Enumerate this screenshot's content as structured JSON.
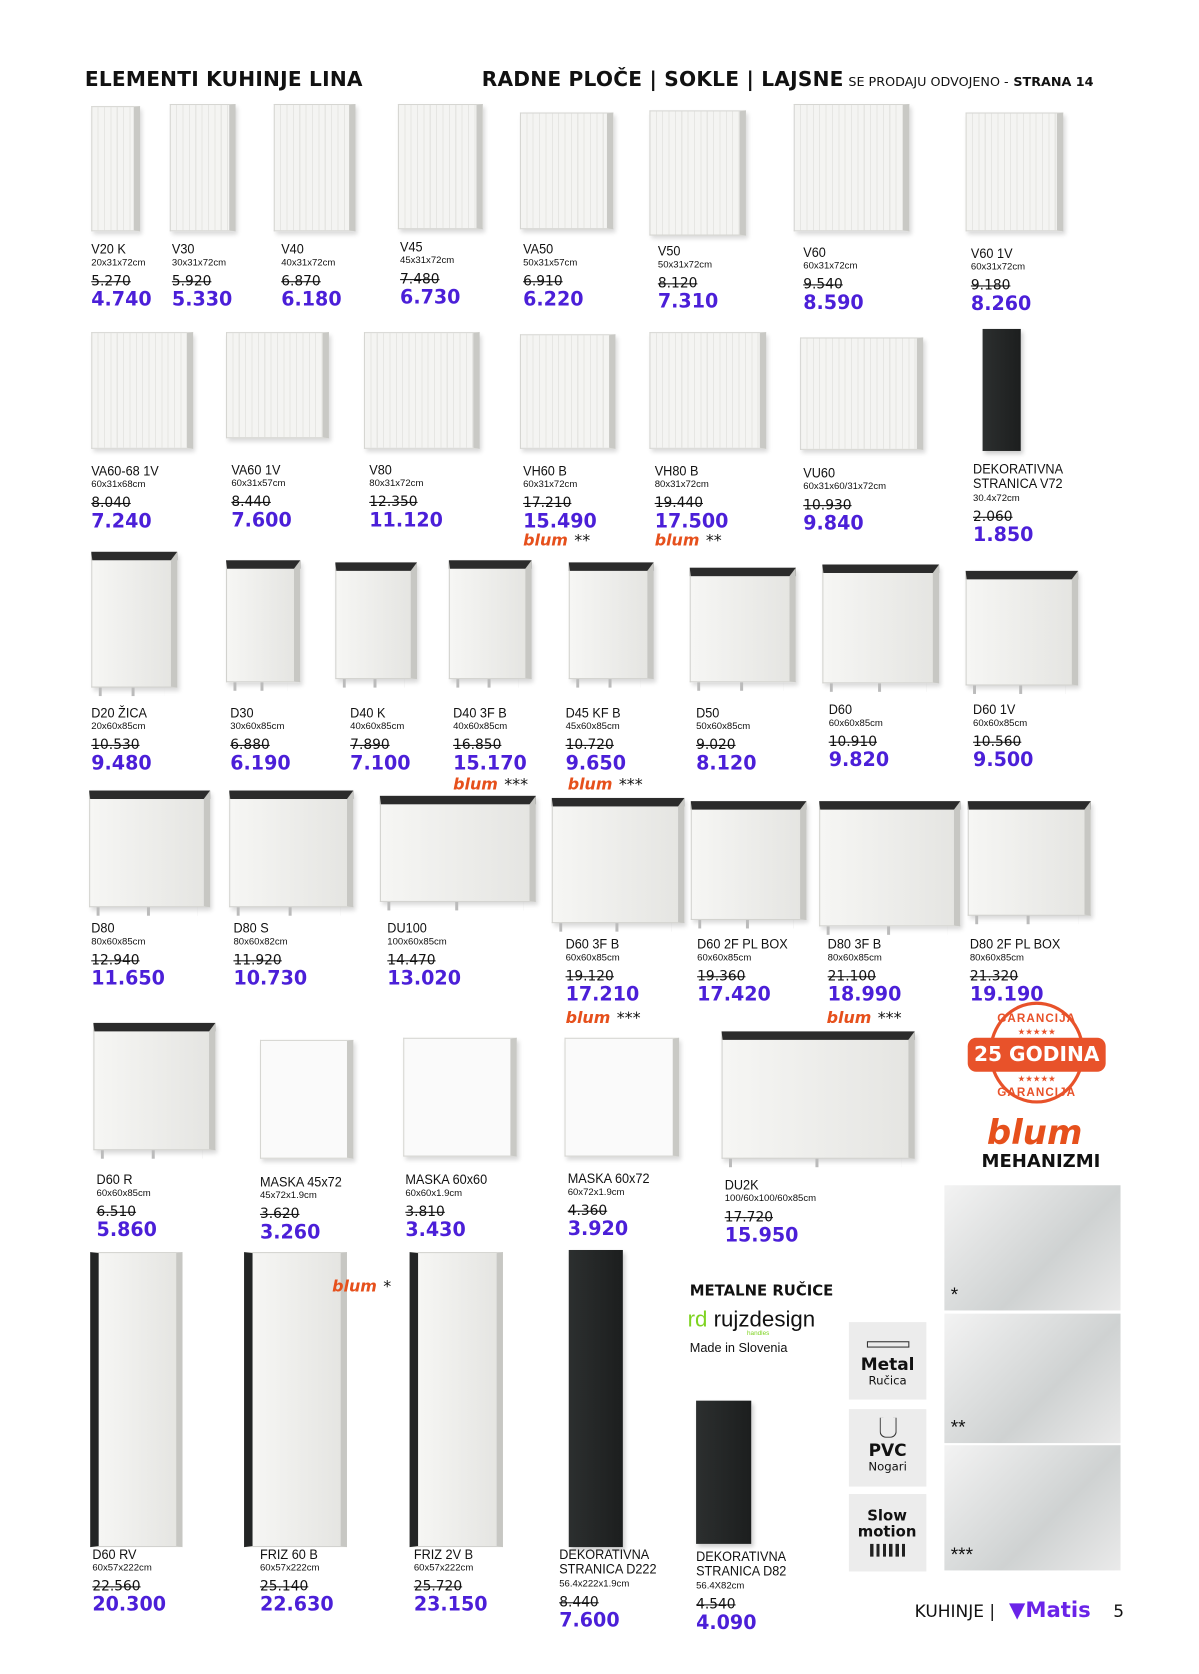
{
  "header": {
    "left_title": "ELEMENTI KUHINJE LINA",
    "right_title": "RADNE PLOČE | SOKLE | LAJSNE",
    "right_note": "SE PRODAJU ODVOJENO -",
    "page_ref": "STRANA 14"
  },
  "products": [
    {
      "name": "V20 K",
      "dims": "20x31x72cm",
      "old_price": "5.270",
      "price": "4.740"
    },
    {
      "name": "V30",
      "dims": "30x31x72cm",
      "old_price": "5.920",
      "price": "5.330"
    },
    {
      "name": "V40",
      "dims": "40x31x72cm",
      "old_price": "6.870",
      "price": "6.180"
    },
    {
      "name": "V45",
      "dims": "45x31x72cm",
      "old_price": "7.480",
      "price": "6.730"
    },
    {
      "name": "VA50",
      "dims": "50x31x57cm",
      "old_price": "6.910",
      "price": "6.220"
    },
    {
      "name": "V50",
      "dims": "50x31x72cm",
      "old_price": "8.120",
      "price": "7.310"
    },
    {
      "name": "V60",
      "dims": "60x31x72cm",
      "old_price": "9.540",
      "price": "8.590"
    },
    {
      "name": "V60 1V",
      "dims": "60x31x72cm",
      "old_price": "9.180",
      "price": "8.260"
    },
    {
      "name": "VA60-68 1V",
      "dims": "60x31x68cm",
      "old_price": "8.040",
      "price": "7.240"
    },
    {
      "name": "VA60 1V",
      "dims": "60x31x57cm",
      "old_price": "8.440",
      "price": "7.600"
    },
    {
      "name": "V80",
      "dims": "80x31x72cm",
      "old_price": "12.350",
      "price": "11.120"
    },
    {
      "name": "VH60 B",
      "dims": "60x31x72cm",
      "old_price": "17.210",
      "price": "15.490",
      "blum": "**"
    },
    {
      "name": "VH80 B",
      "dims": "80x31x72cm",
      "old_price": "19.440",
      "price": "17.500",
      "blum": "**"
    },
    {
      "name": "VU60",
      "dims": "60x31x60/31x72cm",
      "old_price": "10.930",
      "price": "9.840"
    },
    {
      "name": "DEKORATIVNA STRANICA V72",
      "dims": "30.4x72cm",
      "old_price": "2.060",
      "price": "1.850"
    },
    {
      "name": "D20 ŽICA",
      "dims": "20x60x85cm",
      "old_price": "10.530",
      "price": "9.480"
    },
    {
      "name": "D30",
      "dims": "30x60x85cm",
      "old_price": "6.880",
      "price": "6.190"
    },
    {
      "name": "D40 K",
      "dims": "40x60x85cm",
      "old_price": "7.890",
      "price": "7.100"
    },
    {
      "name": "D40 3F B",
      "dims": "40x60x85cm",
      "old_price": "16.850",
      "price": "15.170",
      "blum": "***"
    },
    {
      "name": "D45 KF B",
      "dims": "45x60x85cm",
      "old_price": "10.720",
      "price": "9.650",
      "blum": "***"
    },
    {
      "name": "D50",
      "dims": "50x60x85cm",
      "old_price": "9.020",
      "price": "8.120"
    },
    {
      "name": "D60",
      "dims": "60x60x85cm",
      "old_price": "10.910",
      "price": "9.820"
    },
    {
      "name": "D60 1V",
      "dims": "60x60x85cm",
      "old_price": "10.560",
      "price": "9.500"
    },
    {
      "name": "D80",
      "dims": "80x60x85cm",
      "old_price": "12.940",
      "price": "11.650"
    },
    {
      "name": "D80 S",
      "dims": "80x60x82cm",
      "old_price": "11.920",
      "price": "10.730"
    },
    {
      "name": "DU100",
      "dims": "100x60x85cm",
      "old_price": "14.470",
      "price": "13.020"
    },
    {
      "name": "D60 3F B",
      "dims": "60x60x85cm",
      "old_price": "19.120",
      "price": "17.210",
      "blum": "***"
    },
    {
      "name": "D60 2F PL BOX",
      "dims": "60x60x85cm",
      "old_price": "19.360",
      "price": "17.420"
    },
    {
      "name": "D80 3F B",
      "dims": "80x60x85cm",
      "old_price": "21.100",
      "price": "18.990",
      "blum": "***"
    },
    {
      "name": "D80 2F PL BOX",
      "dims": "80x60x85cm",
      "old_price": "21.320",
      "price": "19.190"
    },
    {
      "name": "D60 R",
      "dims": "60x60x85cm",
      "old_price": "6.510",
      "price": "5.860"
    },
    {
      "name": "MASKA 45x72",
      "dims": "45x72x1.9cm",
      "old_price": "3.620",
      "price": "3.260"
    },
    {
      "name": "MASKA 60x60",
      "dims": "60x60x1.9cm",
      "old_price": "3.810",
      "price": "3.430"
    },
    {
      "name": "MASKA 60x72",
      "dims": "60x72x1.9cm",
      "old_price": "4.360",
      "price": "3.920"
    },
    {
      "name": "DU2K",
      "dims": "100/60x100/60x85cm",
      "old_price": "17.720",
      "price": "15.950"
    },
    {
      "name": "D60 RV",
      "dims": "60x57x222cm",
      "old_price": "22.560",
      "price": "20.300"
    },
    {
      "name": "FRIZ 60 B",
      "dims": "60x57x222cm",
      "old_price": "25.140",
      "price": "22.630",
      "blum": "*"
    },
    {
      "name": "FRIZ 2V B",
      "dims": "60x57x222cm",
      "old_price": "25.720",
      "price": "23.150"
    },
    {
      "name": "DEKORATIVNA STRANICA D222",
      "dims": "56.4x222x1.9cm",
      "old_price": "8.440",
      "price": "7.600"
    },
    {
      "name": "DEKORATIVNA STRANICA D82",
      "dims": "56.4X82cm",
      "old_price": "4.540",
      "price": "4.090"
    }
  ],
  "blum_logo": "blum",
  "guarantee": {
    "top": "GARANCIJA",
    "main": "25 GODINA",
    "bottom": "GARANCIJA",
    "stars": "★★★★★"
  },
  "mechanisms": {
    "logo": "blum",
    "label": "MEHANIZMI",
    "photos": [
      {
        "stars": "*"
      },
      {
        "stars": "**"
      },
      {
        "stars": "***"
      }
    ]
  },
  "handles": {
    "title": "METALNE RUČICE",
    "brand_prefix": "rd",
    "brand": "rujzdesign",
    "brand_sub": "handles",
    "origin": "Made in Slovenia"
  },
  "features": [
    {
      "title": "Metal",
      "sub": "Ručica",
      "icon": "handle-bar-icon"
    },
    {
      "title": "PVC",
      "sub": "Nogari",
      "icon": "adjustable-leg-icon"
    },
    {
      "title": "Slow motion",
      "sub": "",
      "icon": "soft-close-bars-icon"
    }
  ],
  "footer": {
    "section": "KUHINJE |",
    "brand": "Matis",
    "page": "5"
  },
  "colors": {
    "price": "#4b1fd8",
    "blum": "#e6501c",
    "guarantee": "#e8522a",
    "brand": "#6a23e8"
  }
}
